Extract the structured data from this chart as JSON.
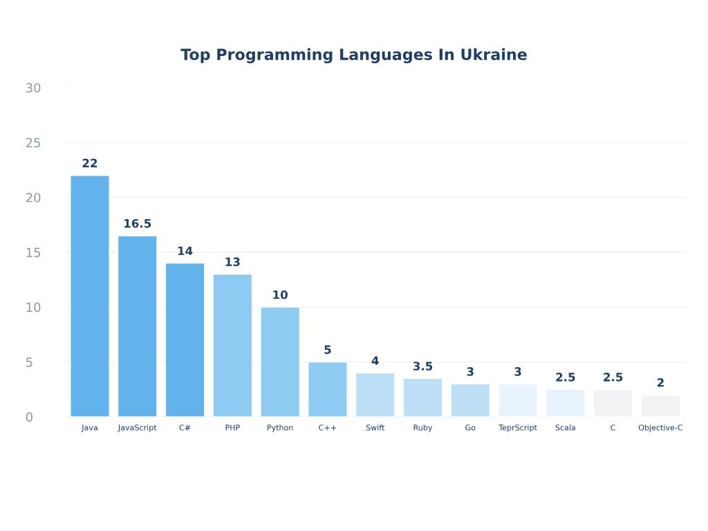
{
  "chart_data": {
    "type": "bar",
    "title": "Top Programming Languages In Ukraine",
    "categories": [
      "Java",
      "JavaScript",
      "C#",
      "PHP",
      "Python",
      "C++",
      "Swift",
      "Ruby",
      "Go",
      "TeprScript",
      "Scala",
      "C",
      "Objective-C"
    ],
    "values": [
      22,
      16.5,
      14,
      13,
      10,
      5,
      4,
      3.5,
      3,
      3,
      2.5,
      2.5,
      2
    ],
    "colors": [
      "#62b2ec",
      "#62b2ec",
      "#62b2ec",
      "#8ecbf3",
      "#8ecbf3",
      "#8ecbf3",
      "#bde0f7",
      "#bde0f7",
      "#bde0f7",
      "#e8f4fd",
      "#e8f4fd",
      "#f2f3f5",
      "#f2f3f5"
    ],
    "ylim": [
      0,
      30
    ],
    "yticks": [
      0,
      5,
      10,
      15,
      20,
      25,
      30
    ],
    "grid": "y",
    "data_labels": true,
    "legend": false
  }
}
